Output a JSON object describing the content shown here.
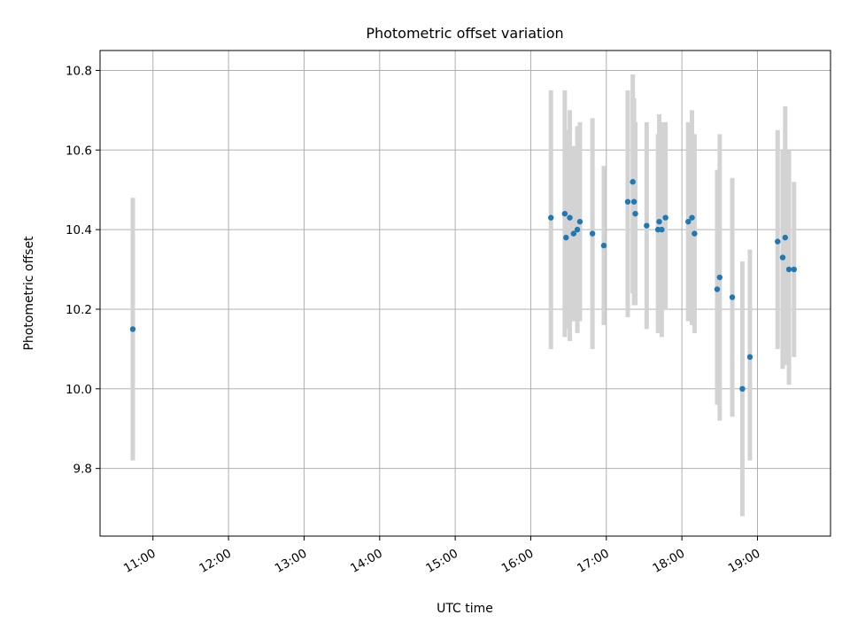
{
  "chart_data": {
    "type": "scatter",
    "title": "Photometric offset variation",
    "xlabel": "UTC time",
    "ylabel": "Photometric offset",
    "x_unit": "time of day (UTC)",
    "xlim": [
      "10:18",
      "19:58"
    ],
    "ylim": [
      9.63,
      10.85
    ],
    "x_ticks": [
      "11:00",
      "12:00",
      "13:00",
      "14:00",
      "15:00",
      "16:00",
      "17:00",
      "18:00",
      "19:00"
    ],
    "y_ticks": [
      9.8,
      10.0,
      10.2,
      10.4,
      10.6,
      10.8
    ],
    "y_tick_labels": [
      "9.8",
      "10.0",
      "10.2",
      "10.4",
      "10.6",
      "10.8"
    ],
    "grid": true,
    "x_tick_rotation_deg": 30,
    "marker_color": "#1f77b4",
    "errorbar_color": "#d3d3d3",
    "series": [
      {
        "points": [
          {
            "x": "10:44",
            "y": 10.15,
            "ylo": 9.82,
            "yhi": 10.48
          },
          {
            "x": "16:16",
            "y": 10.43,
            "ylo": 10.1,
            "yhi": 10.75
          },
          {
            "x": "16:27",
            "y": 10.44,
            "ylo": 10.13,
            "yhi": 10.75
          },
          {
            "x": "16:28",
            "y": 10.38,
            "ylo": 10.15,
            "yhi": 10.65
          },
          {
            "x": "16:31",
            "y": 10.43,
            "ylo": 10.12,
            "yhi": 10.7
          },
          {
            "x": "16:34",
            "y": 10.39,
            "ylo": 10.17,
            "yhi": 10.61
          },
          {
            "x": "16:37",
            "y": 10.4,
            "ylo": 10.14,
            "yhi": 10.66
          },
          {
            "x": "16:39",
            "y": 10.42,
            "ylo": 10.17,
            "yhi": 10.67
          },
          {
            "x": "16:49",
            "y": 10.39,
            "ylo": 10.1,
            "yhi": 10.68
          },
          {
            "x": "16:58",
            "y": 10.36,
            "ylo": 10.16,
            "yhi": 10.56
          },
          {
            "x": "17:17",
            "y": 10.47,
            "ylo": 10.18,
            "yhi": 10.75
          },
          {
            "x": "17:21",
            "y": 10.52,
            "ylo": 10.24,
            "yhi": 10.79
          },
          {
            "x": "17:22",
            "y": 10.47,
            "ylo": 10.21,
            "yhi": 10.73
          },
          {
            "x": "17:23",
            "y": 10.44,
            "ylo": 10.21,
            "yhi": 10.67
          },
          {
            "x": "17:32",
            "y": 10.41,
            "ylo": 10.15,
            "yhi": 10.67
          },
          {
            "x": "17:41",
            "y": 10.4,
            "ylo": 10.14,
            "yhi": 10.64
          },
          {
            "x": "17:42",
            "y": 10.42,
            "ylo": 10.16,
            "yhi": 10.69
          },
          {
            "x": "17:44",
            "y": 10.4,
            "ylo": 10.13,
            "yhi": 10.67
          },
          {
            "x": "17:47",
            "y": 10.43,
            "ylo": 10.2,
            "yhi": 10.67
          },
          {
            "x": "18:05",
            "y": 10.42,
            "ylo": 10.17,
            "yhi": 10.67
          },
          {
            "x": "18:08",
            "y": 10.43,
            "ylo": 10.16,
            "yhi": 10.7
          },
          {
            "x": "18:10",
            "y": 10.39,
            "ylo": 10.14,
            "yhi": 10.64
          },
          {
            "x": "18:28",
            "y": 10.25,
            "ylo": 9.96,
            "yhi": 10.55
          },
          {
            "x": "18:30",
            "y": 10.28,
            "ylo": 9.92,
            "yhi": 10.64
          },
          {
            "x": "18:40",
            "y": 10.23,
            "ylo": 9.93,
            "yhi": 10.53
          },
          {
            "x": "18:48",
            "y": 10.0,
            "ylo": 9.68,
            "yhi": 10.32
          },
          {
            "x": "18:54",
            "y": 10.08,
            "ylo": 9.82,
            "yhi": 10.35
          },
          {
            "x": "19:16",
            "y": 10.37,
            "ylo": 10.1,
            "yhi": 10.65
          },
          {
            "x": "19:20",
            "y": 10.33,
            "ylo": 10.05,
            "yhi": 10.6
          },
          {
            "x": "19:22",
            "y": 10.38,
            "ylo": 10.06,
            "yhi": 10.71
          },
          {
            "x": "19:25",
            "y": 10.3,
            "ylo": 10.01,
            "yhi": 10.6
          },
          {
            "x": "19:29",
            "y": 10.3,
            "ylo": 10.08,
            "yhi": 10.52
          }
        ]
      }
    ]
  }
}
